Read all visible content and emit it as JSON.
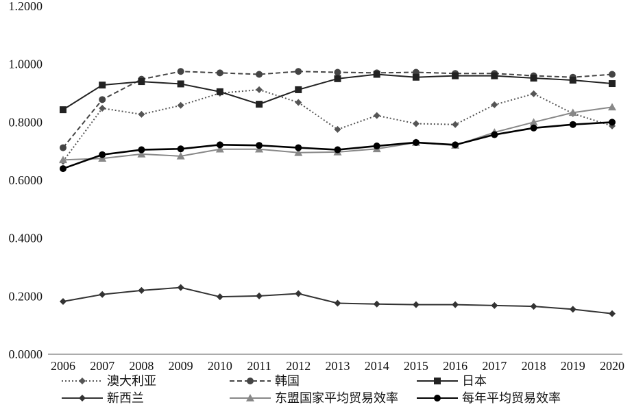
{
  "chart_data": {
    "type": "line",
    "title": "",
    "xlabel": "",
    "ylabel": "",
    "x": [
      "2006",
      "2007",
      "2008",
      "2009",
      "2010",
      "2011",
      "2012",
      "2013",
      "2014",
      "2015",
      "2016",
      "2017",
      "2018",
      "2019",
      "2020"
    ],
    "ylim": [
      0,
      1.2
    ],
    "yticks": [
      "0.0000",
      "0.2000",
      "0.4000",
      "0.6000",
      "0.8000",
      "1.0000",
      "1.2000"
    ],
    "grid": false,
    "legend_position": "bottom",
    "series": [
      {
        "name": "澳大利亚",
        "color": "#555555",
        "line_style": "dotted",
        "marker": "diamond",
        "values": [
          0.665,
          0.848,
          0.827,
          0.858,
          0.9,
          0.912,
          0.868,
          0.775,
          0.823,
          0.795,
          0.792,
          0.86,
          0.898,
          0.83,
          0.787
        ]
      },
      {
        "name": "韩国",
        "color": "#444444",
        "line_style": "dashed",
        "marker": "circle",
        "values": [
          0.712,
          0.878,
          0.948,
          0.975,
          0.97,
          0.965,
          0.975,
          0.972,
          0.97,
          0.972,
          0.968,
          0.968,
          0.96,
          0.955,
          0.965
        ]
      },
      {
        "name": "日本",
        "color": "#222222",
        "line_style": "solid",
        "marker": "square",
        "values": [
          0.843,
          0.928,
          0.94,
          0.932,
          0.905,
          0.862,
          0.912,
          0.95,
          0.965,
          0.955,
          0.96,
          0.96,
          0.952,
          0.945,
          0.933
        ]
      },
      {
        "name": "新西兰",
        "color": "#333333",
        "line_style": "solid",
        "marker": "diamond",
        "values": [
          0.182,
          0.206,
          0.22,
          0.23,
          0.198,
          0.201,
          0.209,
          0.176,
          0.173,
          0.171,
          0.171,
          0.168,
          0.165,
          0.155,
          0.14
        ]
      },
      {
        "name": "东盟国家平均贸易效率",
        "color": "#888888",
        "line_style": "solid",
        "marker": "triangle",
        "values": [
          0.67,
          0.675,
          0.69,
          0.683,
          0.707,
          0.707,
          0.695,
          0.697,
          0.708,
          0.73,
          0.72,
          0.765,
          0.8,
          0.833,
          0.852
        ]
      },
      {
        "name": "每年平均贸易效率",
        "color": "#000000",
        "line_style": "solid",
        "marker": "circle",
        "values": [
          0.64,
          0.688,
          0.705,
          0.708,
          0.722,
          0.72,
          0.712,
          0.705,
          0.718,
          0.73,
          0.722,
          0.757,
          0.78,
          0.792,
          0.8
        ]
      }
    ]
  }
}
